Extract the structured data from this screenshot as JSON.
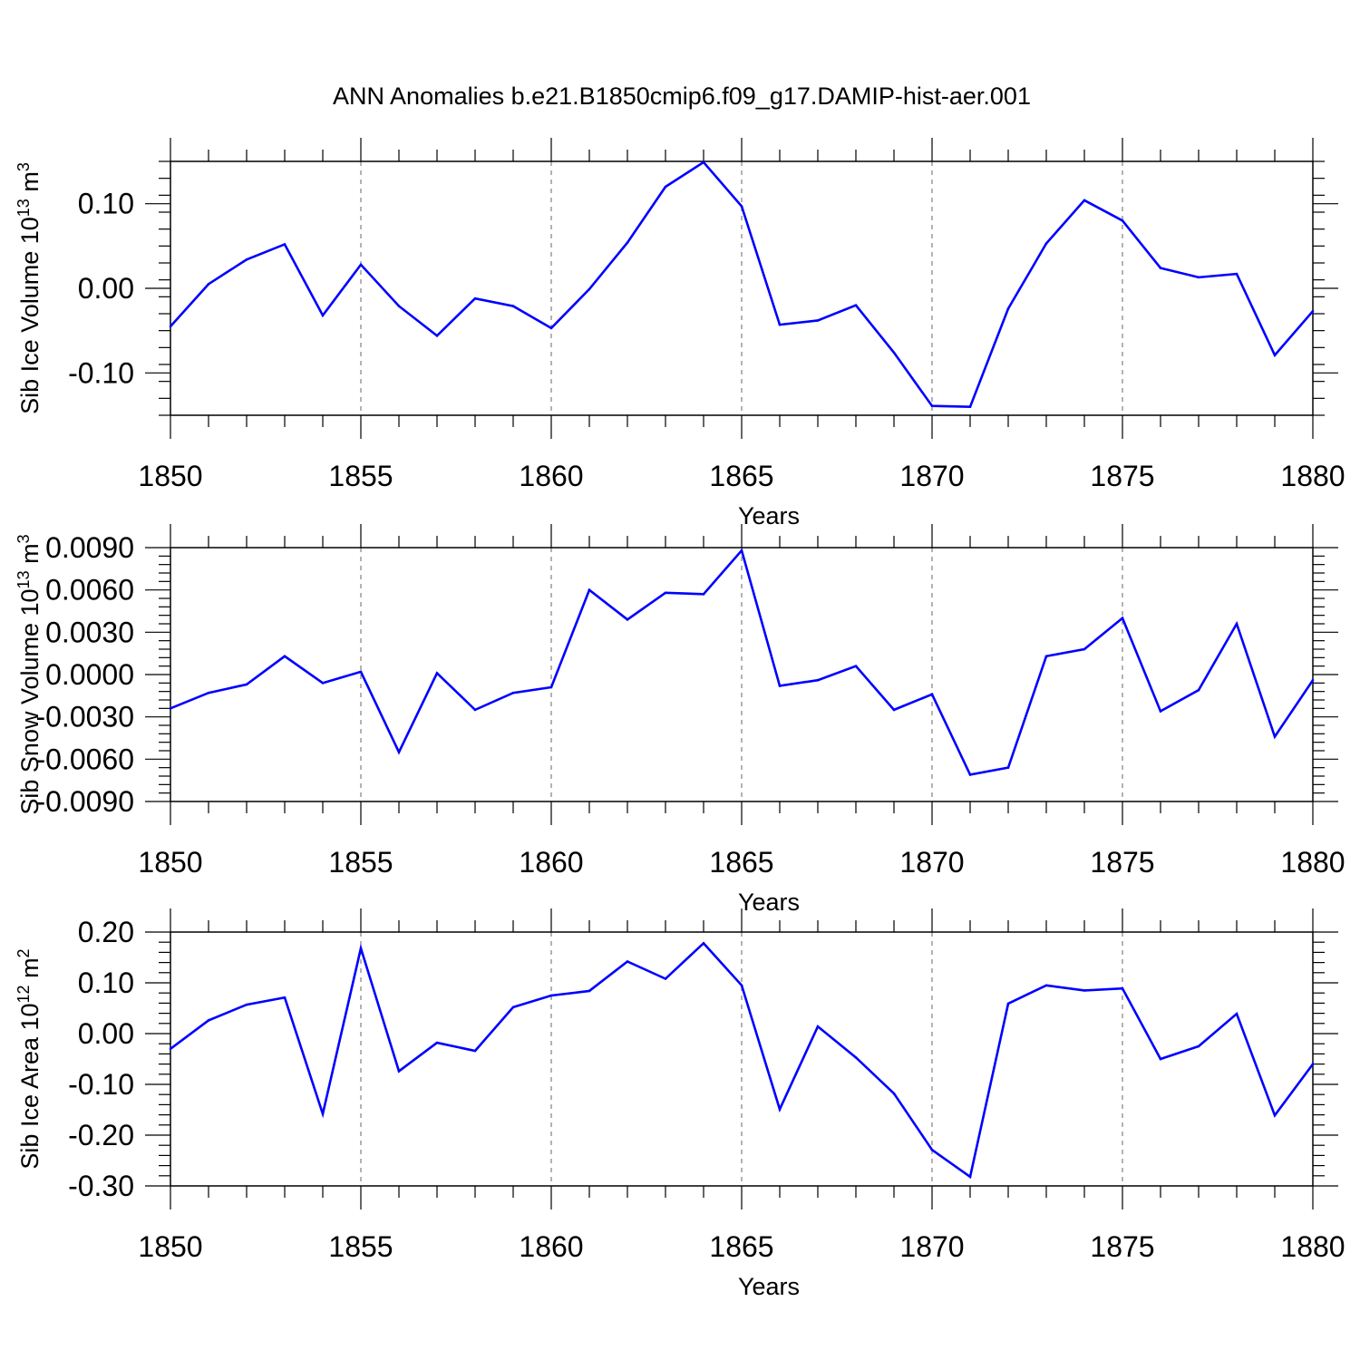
{
  "title": "ANN Anomalies b.e21.B1850cmip6.f09_g17.DAMIP-hist-aer.001",
  "colors": {
    "line": "#0000ff",
    "axis": "#000000",
    "grid": "#808080"
  },
  "chart_data": [
    {
      "type": "line",
      "ylabel": "Sib Ice Volume 10",
      "ylabel_exp": "13",
      "ylabel_unit": " m",
      "ylabel_unit_exp": "3",
      "xlabel": "Years",
      "xlim": [
        1850,
        1880
      ],
      "ylim": [
        -0.15,
        0.15
      ],
      "yticks": [
        -0.1,
        0.0,
        0.1
      ],
      "ytick_labels": [
        "-0.10",
        "0.00",
        "0.10"
      ],
      "xticks": [
        1850,
        1855,
        1860,
        1865,
        1870,
        1875,
        1880
      ],
      "xtick_labels": [
        "1850",
        "1855",
        "1860",
        "1865",
        "1870",
        "1875",
        "1880"
      ],
      "x": [
        1850,
        1851,
        1852,
        1853,
        1854,
        1855,
        1856,
        1857,
        1858,
        1859,
        1860,
        1861,
        1862,
        1863,
        1864,
        1865,
        1866,
        1867,
        1868,
        1869,
        1870,
        1871,
        1872,
        1873,
        1874,
        1875,
        1876,
        1877,
        1878,
        1879,
        1880
      ],
      "values": [
        -0.045,
        0.005,
        0.034,
        0.052,
        -0.032,
        0.028,
        -0.021,
        -0.056,
        -0.012,
        -0.021,
        -0.047,
        -0.001,
        0.054,
        0.12,
        0.149,
        0.097,
        -0.043,
        -0.038,
        -0.02,
        -0.076,
        -0.139,
        -0.14,
        -0.024,
        0.053,
        0.104,
        0.08,
        0.024,
        0.013,
        0.017,
        -0.079,
        -0.027
      ]
    },
    {
      "type": "line",
      "ylabel": "Sib Snow Volume 10",
      "ylabel_exp": "13",
      "ylabel_unit": " m",
      "ylabel_unit_exp": "3",
      "xlabel": "Years",
      "xlim": [
        1850,
        1880
      ],
      "ylim": [
        -0.009,
        0.009
      ],
      "yticks": [
        -0.009,
        -0.006,
        -0.003,
        0.0,
        0.003,
        0.006,
        0.009
      ],
      "ytick_labels": [
        "-0.0090",
        "-0.0060",
        "-0.0030",
        "0.0000",
        "0.0030",
        "0.0060",
        "0.0090"
      ],
      "xticks": [
        1850,
        1855,
        1860,
        1865,
        1870,
        1875,
        1880
      ],
      "xtick_labels": [
        "1850",
        "1855",
        "1860",
        "1865",
        "1870",
        "1875",
        "1880"
      ],
      "x": [
        1850,
        1851,
        1852,
        1853,
        1854,
        1855,
        1856,
        1857,
        1858,
        1859,
        1860,
        1861,
        1862,
        1863,
        1864,
        1865,
        1866,
        1867,
        1868,
        1869,
        1870,
        1871,
        1872,
        1873,
        1874,
        1875,
        1876,
        1877,
        1878,
        1879,
        1880
      ],
      "values": [
        -0.0024,
        -0.0013,
        -0.0007,
        0.0013,
        -0.0006,
        0.0002,
        -0.0055,
        0.0001,
        -0.0025,
        -0.0013,
        -0.0009,
        0.006,
        0.0039,
        0.0058,
        0.0057,
        0.0088,
        -0.0008,
        -0.0004,
        0.0006,
        -0.0025,
        -0.0014,
        -0.0071,
        -0.0066,
        0.0013,
        0.0018,
        0.004,
        -0.0026,
        -0.0011,
        0.0036,
        -0.0044,
        -0.0004
      ]
    },
    {
      "type": "line",
      "ylabel": "Sib Ice Area 10",
      "ylabel_exp": "12",
      "ylabel_unit": " m",
      "ylabel_unit_exp": "2",
      "xlabel": "Years",
      "xlim": [
        1850,
        1880
      ],
      "ylim": [
        -0.3,
        0.2
      ],
      "yticks": [
        -0.3,
        -0.2,
        -0.1,
        0.0,
        0.1,
        0.2
      ],
      "ytick_labels": [
        "-0.30",
        "-0.20",
        "-0.10",
        "0.00",
        "0.10",
        "0.20"
      ],
      "xticks": [
        1850,
        1855,
        1860,
        1865,
        1870,
        1875,
        1880
      ],
      "xtick_labels": [
        "1850",
        "1855",
        "1860",
        "1865",
        "1870",
        "1875",
        "1880"
      ],
      "x": [
        1850,
        1851,
        1852,
        1853,
        1854,
        1855,
        1856,
        1857,
        1858,
        1859,
        1860,
        1861,
        1862,
        1863,
        1864,
        1865,
        1866,
        1867,
        1868,
        1869,
        1870,
        1871,
        1872,
        1873,
        1874,
        1875,
        1876,
        1877,
        1878,
        1879,
        1880
      ],
      "values": [
        -0.03,
        0.026,
        0.057,
        0.071,
        -0.158,
        0.168,
        -0.074,
        -0.018,
        -0.034,
        0.052,
        0.075,
        0.084,
        0.142,
        0.108,
        0.178,
        0.095,
        -0.149,
        0.014,
        -0.047,
        -0.118,
        -0.229,
        -0.282,
        0.059,
        0.095,
        0.085,
        0.089,
        -0.05,
        -0.025,
        0.039,
        -0.161,
        -0.06
      ]
    }
  ]
}
